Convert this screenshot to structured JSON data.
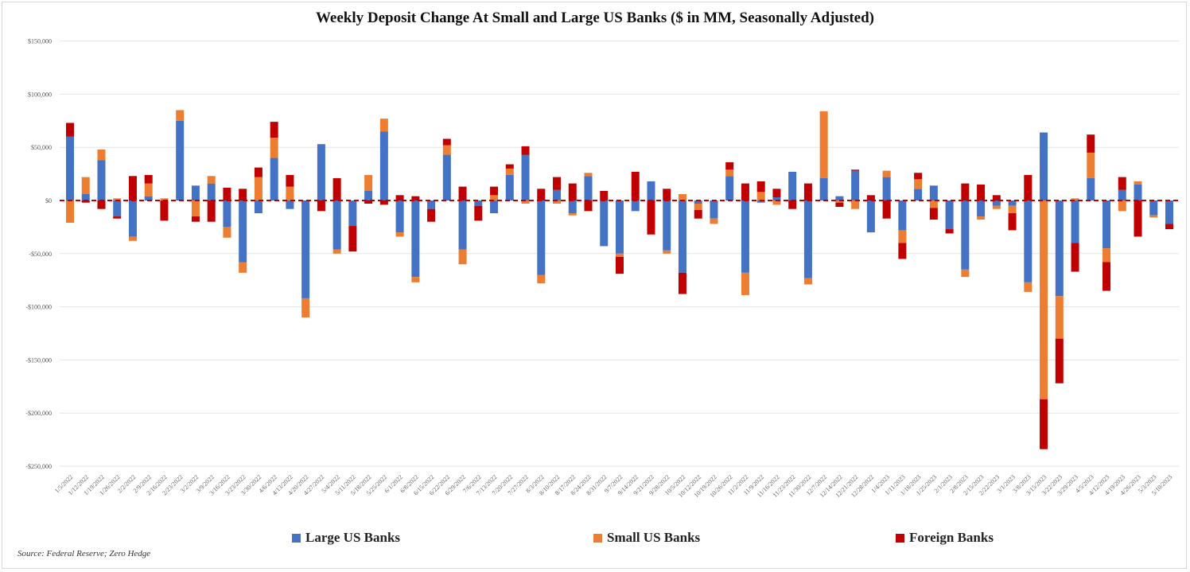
{
  "chart_data": {
    "type": "bar",
    "stacked": true,
    "title": "Weekly Deposit Change At Small and Large US Banks ($ in MM,  Seasonally Adjusted)",
    "xlabel": "",
    "ylabel": "",
    "ylim": [
      -250000,
      150000
    ],
    "yticks": [
      150000,
      100000,
      50000,
      0,
      -50000,
      -100000,
      -150000,
      -200000,
      -250000
    ],
    "ytick_labels": [
      "$150,000",
      "$100,000",
      "$50,000",
      "$0",
      "-$50,000",
      "-$100,000",
      "-$150,000",
      "-$200,000",
      "-$250,000"
    ],
    "grid": true,
    "legend_position": "bottom",
    "categories": [
      "1/5/2022",
      "1/12/2022",
      "1/19/2022",
      "1/26/2022",
      "2/2/2022",
      "2/9/2022",
      "2/16/2022",
      "2/23/2022",
      "3/2/2022",
      "3/9/2022",
      "3/16/2022",
      "3/23/2022",
      "3/30/2022",
      "4/6/2022",
      "4/13/2022",
      "4/20/2022",
      "4/27/2022",
      "5/4/2022",
      "5/11/2022",
      "5/18/2022",
      "5/25/2022",
      "6/1/2022",
      "6/8/2022",
      "6/15/2022",
      "6/22/2022",
      "6/29/2022",
      "7/6/2022",
      "7/13/2022",
      "7/20/2022",
      "7/27/2022",
      "8/3/2022",
      "8/10/2022",
      "8/17/2022",
      "8/24/2022",
      "8/31/2022",
      "9/7/2022",
      "9/14/2022",
      "9/21/2022",
      "9/28/2022",
      "10/5/2022",
      "10/12/2022",
      "10/19/2022",
      "10/26/2022",
      "11/2/2022",
      "11/9/2022",
      "11/16/2022",
      "11/23/2022",
      "11/30/2022",
      "12/7/2022",
      "12/14/2022",
      "12/21/2022",
      "12/28/2022",
      "1/4/2023",
      "1/11/2023",
      "1/18/2023",
      "1/25/2023",
      "2/1/2023",
      "2/8/2023",
      "2/15/2023",
      "2/22/2023",
      "3/1/2023",
      "3/8/2023",
      "3/15/2023",
      "3/22/2023",
      "3/29/2023",
      "4/5/2023",
      "4/12/2023",
      "4/19/2023",
      "4/26/2023",
      "5/3/2023",
      "5/10/2023"
    ],
    "series": [
      {
        "name": "Large US Banks",
        "color": "#4472c4",
        "values": [
          60000,
          6000,
          38000,
          -15000,
          -34000,
          4000,
          0,
          75000,
          14000,
          16000,
          -25000,
          -58000,
          -12000,
          40000,
          -8000,
          -92000,
          53000,
          -46000,
          -24000,
          9000,
          65000,
          -30000,
          -72000,
          -8000,
          43000,
          -46000,
          -5000,
          -12000,
          24000,
          43000,
          -70000,
          10000,
          -12000,
          23000,
          -43000,
          -50000,
          -10000,
          18000,
          -47000,
          -68000,
          -3000,
          -17000,
          23000,
          -68000,
          -2000,
          3000,
          27000,
          -73000,
          21000,
          4000,
          28000,
          -30000,
          22000,
          -28000,
          11000,
          14000,
          -27000,
          -65000,
          -15000,
          -5000,
          -5000,
          -77000,
          64000,
          -90000,
          -40000,
          21000,
          -45000,
          10000,
          15000,
          -14000,
          -22000
        ]
      },
      {
        "name": "Small US Banks",
        "color": "#ed7d31",
        "values": [
          -21000,
          16000,
          10000,
          2000,
          -4000,
          12000,
          2000,
          10000,
          -15000,
          7000,
          -10000,
          -10000,
          22000,
          19000,
          13000,
          -18000,
          0,
          -4000,
          0,
          15000,
          12000,
          -4000,
          -5000,
          0,
          9000,
          -14000,
          0,
          5000,
          6000,
          -3000,
          -8000,
          -3000,
          -2000,
          3000,
          0,
          -3000,
          0,
          0,
          -3000,
          6000,
          -6000,
          -5000,
          6000,
          -21000,
          8000,
          -4000,
          0,
          -6000,
          63000,
          -2000,
          -8000,
          0,
          6000,
          -12000,
          9000,
          -7000,
          0,
          -7000,
          -3000,
          -3000,
          -7000,
          -9000,
          -187000,
          -40000,
          2000,
          24000,
          -13000,
          -10000,
          3000,
          -2000,
          0
        ]
      },
      {
        "name": "Foreign Banks",
        "color": "#c00000",
        "values": [
          13000,
          -2000,
          -8000,
          -2000,
          23000,
          8000,
          -19000,
          0,
          -5000,
          -20000,
          12000,
          11000,
          9000,
          15000,
          11000,
          0,
          -10000,
          21000,
          -24000,
          -3000,
          -4000,
          5000,
          4000,
          -12000,
          6000,
          13000,
          -14000,
          8000,
          4000,
          8000,
          11000,
          12000,
          16000,
          -10000,
          9000,
          -16000,
          27000,
          -32000,
          11000,
          -20000,
          -8000,
          0,
          7000,
          16000,
          10000,
          8000,
          -8000,
          16000,
          0,
          -4000,
          1000,
          5000,
          -17000,
          -15000,
          6000,
          -11000,
          -4000,
          16000,
          15000,
          5000,
          -16000,
          24000,
          -47000,
          -42000,
          -27000,
          17000,
          -27000,
          12000,
          -34000,
          0,
          -5000
        ]
      }
    ],
    "zero_line": {
      "color": "#c00000",
      "style": "dashed"
    }
  },
  "source": "Source: Federal Reserve; Zero Hedge"
}
